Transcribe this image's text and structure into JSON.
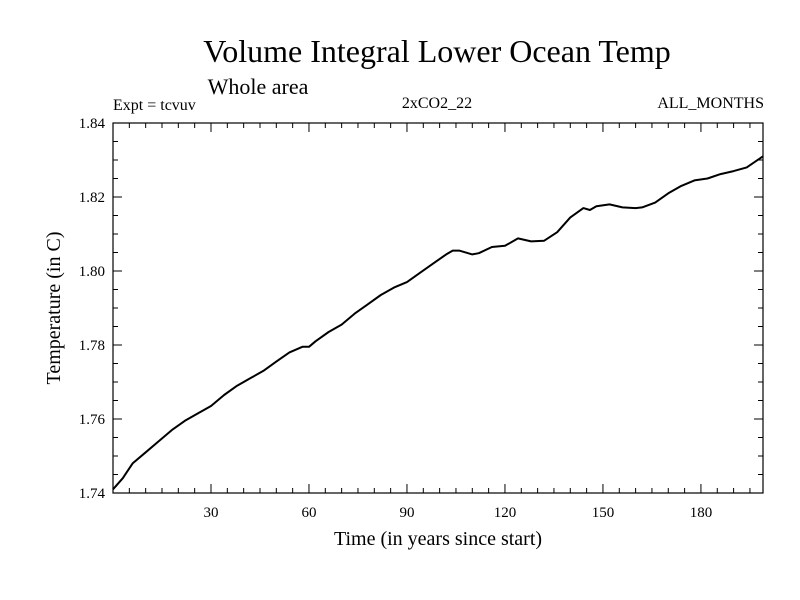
{
  "header": {
    "title": "Volume Integral Lower Ocean Temp",
    "subtitle": "Whole area",
    "expt": "Expt = tcvuv",
    "run": "2xCO2_22",
    "months": "ALL_MONTHS"
  },
  "chart_data": {
    "type": "line",
    "xlabel": "Time (in years since start)",
    "ylabel": "Temperature (in C)",
    "xlim": [
      0,
      199
    ],
    "ylim": [
      1.74,
      1.84
    ],
    "xticks": [
      30,
      60,
      90,
      120,
      150,
      180
    ],
    "xtick_labels": [
      "30",
      "60",
      "90",
      "120",
      "150",
      "180"
    ],
    "yticks": [
      1.74,
      1.76,
      1.78,
      1.8,
      1.82,
      1.84
    ],
    "ytick_labels": [
      "1.74",
      "1.76",
      "1.78",
      "1.80",
      "1.82",
      "1.84"
    ],
    "grid": false,
    "series": [
      {
        "color": "#000000",
        "x": [
          0,
          3,
          6,
          10,
          14,
          18,
          22,
          26,
          30,
          34,
          38,
          42,
          46,
          50,
          54,
          58,
          60,
          62,
          66,
          70,
          74,
          78,
          82,
          86,
          90,
          94,
          98,
          102,
          104,
          106,
          110,
          112,
          116,
          120,
          124,
          128,
          132,
          136,
          140,
          144,
          146,
          148,
          152,
          156,
          160,
          162,
          166,
          170,
          174,
          178,
          182,
          186,
          190,
          194,
          199
        ],
        "values": [
          1.741,
          1.744,
          1.748,
          1.751,
          1.754,
          1.757,
          1.7595,
          1.7615,
          1.7635,
          1.7665,
          1.769,
          1.771,
          1.773,
          1.7755,
          1.778,
          1.7795,
          1.7795,
          1.781,
          1.7835,
          1.7855,
          1.7885,
          1.791,
          1.7935,
          1.7955,
          1.797,
          1.7995,
          1.802,
          1.8045,
          1.8055,
          1.8055,
          1.8045,
          1.8048,
          1.8065,
          1.8068,
          1.8088,
          1.808,
          1.8082,
          1.8105,
          1.8145,
          1.817,
          1.8165,
          1.8175,
          1.818,
          1.8172,
          1.817,
          1.8172,
          1.8185,
          1.821,
          1.823,
          1.8245,
          1.825,
          1.8262,
          1.827,
          1.828,
          1.831
        ]
      }
    ]
  }
}
